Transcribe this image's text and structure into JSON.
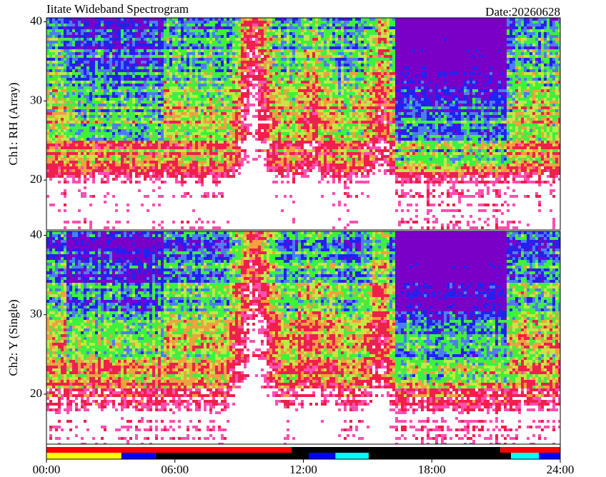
{
  "header": {
    "title": "Iitate Wideband Spectrogram",
    "date": "Date:20260628"
  },
  "chart_data": [
    {
      "type": "spectrogram",
      "ylabel": "Ch1: RH (Array)",
      "ylim": [
        13.7,
        40.5
      ],
      "yticks": [
        20,
        30,
        40
      ]
    },
    {
      "type": "spectrogram",
      "ylabel": "Ch2: Y (Single)",
      "ylim": [
        13.7,
        40.5
      ],
      "yticks": [
        20,
        30,
        40
      ]
    },
    {
      "type": "status",
      "xlim": [
        0,
        24
      ],
      "xticks": [
        {
          "value": 0,
          "label": "00:00"
        },
        {
          "value": 6,
          "label": "06:00"
        },
        {
          "value": 12,
          "label": "12:00"
        },
        {
          "value": 18,
          "label": "18:00"
        },
        {
          "value": 24,
          "label": "24:00"
        }
      ],
      "rows": [
        {
          "segments": [
            {
              "start": 0,
              "end": 11.45,
              "color": "#ff0000"
            },
            {
              "start": 11.45,
              "end": 21.2,
              "color": "#000000"
            },
            {
              "start": 21.2,
              "end": 24,
              "color": "#ff0000"
            }
          ]
        },
        {
          "segments": [
            {
              "start": 0,
              "end": 3.5,
              "color": "#ffff00"
            },
            {
              "start": 3.5,
              "end": 5.1,
              "color": "#0000ff"
            },
            {
              "start": 5.1,
              "end": 12.25,
              "color": "#000000"
            },
            {
              "start": 12.25,
              "end": 13.5,
              "color": "#0000ff"
            },
            {
              "start": 13.5,
              "end": 15.05,
              "color": "#00ffff"
            },
            {
              "start": 15.05,
              "end": 21.7,
              "color": "#000000"
            },
            {
              "start": 21.7,
              "end": 23,
              "color": "#00ffff"
            },
            {
              "start": 23,
              "end": 24,
              "color": "#0000ff"
            }
          ]
        }
      ]
    }
  ]
}
